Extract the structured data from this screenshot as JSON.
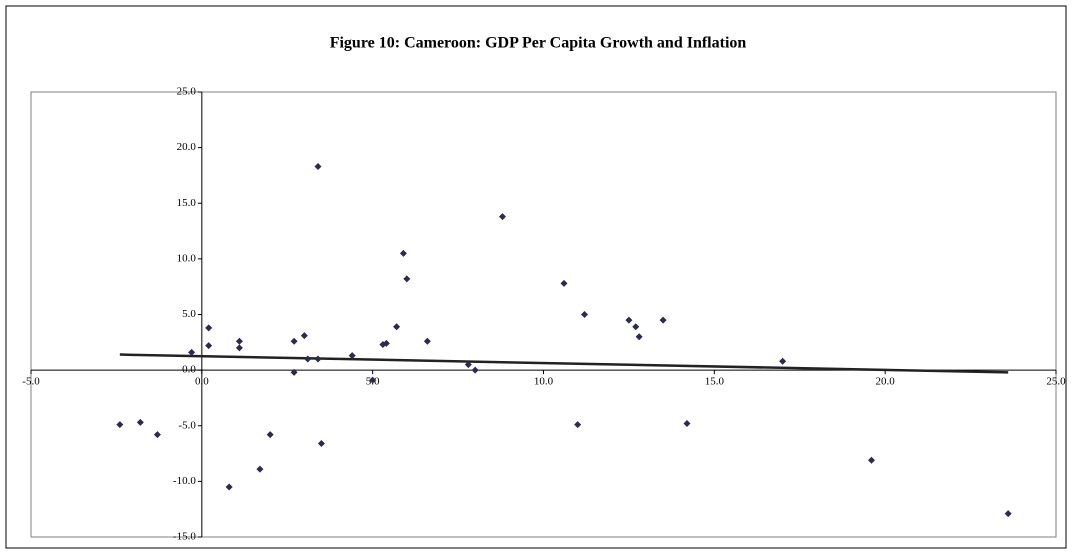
{
  "chart_data": {
    "type": "scatter",
    "title": "Figure 10: Cameroon: GDP Per Capita Growth and Inflation",
    "x": [
      -2.4,
      -1.8,
      -1.3,
      -0.3,
      0.2,
      0.2,
      0.8,
      1.1,
      1.1,
      1.7,
      2.0,
      2.7,
      2.7,
      3.0,
      3.1,
      3.4,
      3.4,
      3.5,
      4.4,
      5.0,
      5.3,
      5.4,
      5.7,
      5.9,
      6.0,
      6.6,
      7.8,
      8.0,
      8.8,
      10.6,
      11.0,
      11.2,
      12.5,
      12.7,
      12.8,
      13.5,
      14.2,
      17.0,
      19.6,
      23.6
    ],
    "y": [
      -4.9,
      -4.7,
      -5.8,
      1.6,
      3.8,
      2.2,
      -10.5,
      2.0,
      2.6,
      -8.9,
      -5.8,
      2.6,
      -0.2,
      3.1,
      1.0,
      18.3,
      1.0,
      -6.6,
      1.3,
      -0.9,
      2.3,
      2.4,
      3.9,
      10.5,
      8.2,
      2.6,
      0.5,
      0.0,
      13.8,
      7.8,
      -4.9,
      5.0,
      4.5,
      3.9,
      3.0,
      4.5,
      -4.8,
      0.8,
      -8.1,
      -12.9
    ],
    "color": "#2b2b4f",
    "trendline": {
      "x": [
        -2.4,
        23.6
      ],
      "y": [
        1.4,
        -0.2
      ],
      "color": "#222222"
    },
    "xlim": [
      -5,
      25
    ],
    "xticks": [
      {
        "value": -5,
        "label": "-5.0"
      },
      {
        "value": 0,
        "label": "0.0"
      },
      {
        "value": 5,
        "label": "5.0"
      },
      {
        "value": 10,
        "label": "10.0"
      },
      {
        "value": 15,
        "label": "15.0"
      },
      {
        "value": 20,
        "label": "20.0"
      },
      {
        "value": 25,
        "label": "25.0"
      }
    ],
    "ylim": [
      -15,
      25
    ],
    "yticks": [
      {
        "value": -15,
        "label": "-15.0"
      },
      {
        "value": -10,
        "label": "-10.0"
      },
      {
        "value": -5,
        "label": "-5.0"
      },
      {
        "value": 0,
        "label": "0.0"
      },
      {
        "value": 5,
        "label": "5.0"
      },
      {
        "value": 10,
        "label": "10.0"
      },
      {
        "value": 15,
        "label": "15.0"
      },
      {
        "value": 20,
        "label": "20.0"
      },
      {
        "value": 25,
        "label": "25.0"
      }
    ]
  }
}
